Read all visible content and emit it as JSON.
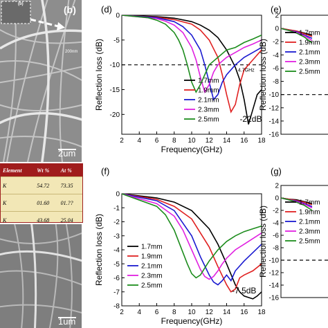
{
  "sem": {
    "panel_letter": "(b)",
    "inset_letter": "(b)",
    "inset_scale": "200nm",
    "top_scale": "2um",
    "bottom_scale": "1um"
  },
  "eds_table": {
    "headers": [
      "Element",
      "Wt %",
      "At %"
    ],
    "rows": [
      [
        "K",
        "54.72",
        "73.35"
      ],
      [
        "K",
        "01.60",
        "01.??"
      ],
      [
        "K",
        "43.68",
        "25.04"
      ]
    ]
  },
  "colors": {
    "1.7mm": "#000000",
    "1.9mm": "#e02020",
    "2.1mm": "#1a1ad0",
    "2.3mm": "#e020e0",
    "2.5mm": "#1c8c1c"
  },
  "chart_data": [
    {
      "panel": "(d)",
      "type": "line",
      "xlabel": "Frequency(GHz)",
      "ylabel": "Reflection loss (dB)",
      "xlim": [
        2,
        18
      ],
      "ylim": [
        -24,
        0
      ],
      "xticks": [
        2,
        4,
        6,
        8,
        10,
        12,
        14,
        16,
        18
      ],
      "yticks": [
        0,
        -5,
        -10,
        -15,
        -20
      ],
      "reference_line": -10,
      "annotations": [
        {
          "text": "-22dB",
          "x": 15.5,
          "y": -21.5
        },
        {
          "text": "4.7GHz",
          "x": 15.3,
          "y": -11.4
        }
      ],
      "legend_position": "bottom-right",
      "series": [
        {
          "name": "1.7mm",
          "color": "#000000",
          "x": [
            2,
            6,
            8,
            10,
            11,
            12,
            13,
            14,
            15,
            15.5,
            16,
            16.5,
            17,
            17.5,
            18
          ],
          "y": [
            0,
            -0.3,
            -0.6,
            -1.3,
            -2,
            -3,
            -4.5,
            -7,
            -10.5,
            -13,
            -17,
            -22,
            -19,
            -16,
            -15
          ]
        },
        {
          "name": "1.9mm",
          "color": "#e02020",
          "x": [
            2,
            6,
            8,
            10,
            11,
            12,
            13,
            13.5,
            14,
            14.5,
            15,
            15.5,
            16,
            17,
            18
          ],
          "y": [
            0,
            -0.4,
            -0.9,
            -1.8,
            -3,
            -5,
            -8.5,
            -12,
            -16,
            -19.5,
            -18,
            -14,
            -11,
            -9,
            -7
          ]
        },
        {
          "name": "2.1mm",
          "color": "#1a1ad0",
          "x": [
            2,
            6,
            8,
            9,
            10,
            11,
            11.5,
            12,
            12.5,
            13,
            13.5,
            14,
            15,
            16,
            17,
            18
          ],
          "y": [
            0,
            -0.5,
            -1.3,
            -2.3,
            -4,
            -7,
            -10,
            -13.5,
            -17,
            -16,
            -13.5,
            -12,
            -10,
            -8.5,
            -7.5,
            -6.5
          ]
        },
        {
          "name": "2.3mm",
          "color": "#e020e0",
          "x": [
            2,
            6,
            7,
            8,
            9,
            10,
            10.5,
            11,
            11.5,
            12,
            12.5,
            13,
            14,
            15,
            16,
            17,
            18
          ],
          "y": [
            0,
            -0.7,
            -1.2,
            -2,
            -3.5,
            -6.5,
            -9,
            -12.5,
            -15.5,
            -14,
            -11.5,
            -10,
            -8.5,
            -7.5,
            -6.5,
            -5.8,
            -5
          ]
        },
        {
          "name": "2.5mm",
          "color": "#1c8c1c",
          "x": [
            2,
            5,
            6,
            7,
            8,
            8.5,
            9,
            9.5,
            10,
            10.5,
            11,
            11.5,
            12,
            13,
            14,
            15,
            16,
            17,
            18
          ],
          "y": [
            0,
            -0.5,
            -1,
            -1.8,
            -3.5,
            -5,
            -7,
            -10,
            -13.5,
            -15.5,
            -14,
            -12,
            -10,
            -8.5,
            -7,
            -6.5,
            -5.5,
            -4.8,
            -4
          ]
        }
      ]
    },
    {
      "panel": "(e)",
      "type": "line",
      "xlabel": "",
      "ylabel": "Reflection loss (dB)",
      "xlim": [
        2,
        18
      ],
      "ylim": [
        -16,
        2
      ],
      "yticks": [
        2,
        0,
        -2,
        -4,
        -6,
        -8,
        -10,
        -12,
        -14,
        -16
      ],
      "reference_line": -10,
      "legend_position": "left",
      "series": [
        {
          "name": "1.7mm",
          "color": "#000000",
          "x": [
            2,
            4,
            6,
            8,
            10
          ],
          "y": [
            0,
            -0.2,
            -0.4,
            -0.7,
            -1
          ]
        },
        {
          "name": "1.9mm",
          "color": "#e02020",
          "x": [
            2,
            4,
            6,
            8,
            10
          ],
          "y": [
            0,
            -0.2,
            -0.4,
            -0.8,
            -1.2
          ]
        },
        {
          "name": "2.1mm",
          "color": "#1a1ad0",
          "x": [
            2,
            4,
            6,
            8,
            10
          ],
          "y": [
            0,
            -0.3,
            -0.5,
            -1,
            -1.5
          ]
        },
        {
          "name": "2.3mm",
          "color": "#e020e0",
          "x": [
            2,
            4,
            6,
            8,
            10
          ],
          "y": [
            0,
            -0.3,
            -0.6,
            -1.1,
            -1.8
          ]
        },
        {
          "name": "2.5mm",
          "color": "#1c8c1c",
          "x": [
            2,
            4,
            6,
            8,
            10
          ],
          "y": [
            0,
            -0.3,
            -0.7,
            -1.3,
            -2.2
          ]
        }
      ]
    },
    {
      "panel": "(f)",
      "type": "line",
      "xlabel": "Frequency(GHz)",
      "ylabel": "Reflection loss (dB)",
      "xlim": [
        2,
        18
      ],
      "ylim": [
        -8,
        0
      ],
      "xticks": [
        2,
        4,
        6,
        8,
        10,
        12,
        14,
        16,
        18
      ],
      "yticks": [
        0,
        -1,
        -2,
        -3,
        -4,
        -5,
        -6,
        -7,
        -8
      ],
      "annotations": [
        {
          "text": "-7.5dB",
          "x": 14.6,
          "y": -7.1
        }
      ],
      "legend_position": "bottom-left",
      "series": [
        {
          "name": "1.7mm",
          "color": "#000000",
          "x": [
            2,
            6,
            8,
            10,
            12,
            13,
            14,
            15,
            15.5,
            16,
            16.5,
            17,
            17.5,
            18
          ],
          "y": [
            0,
            -0.3,
            -0.6,
            -1.2,
            -2.5,
            -3.6,
            -5,
            -6.5,
            -7,
            -7.3,
            -7.4,
            -7.5,
            -7.3,
            -7
          ]
        },
        {
          "name": "1.9mm",
          "color": "#e02020",
          "x": [
            2,
            6,
            8,
            10,
            12,
            13,
            14,
            14.5,
            15,
            15.5,
            16,
            17,
            18
          ],
          "y": [
            0,
            -0.4,
            -0.9,
            -1.8,
            -3.8,
            -5.2,
            -6.5,
            -7,
            -6.8,
            -6,
            -5.8,
            -5.5,
            -5
          ]
        },
        {
          "name": "2.1mm",
          "color": "#1a1ad0",
          "x": [
            2,
            6,
            8,
            10,
            11,
            12,
            12.5,
            13,
            13.5,
            14,
            14.5,
            15,
            16,
            17,
            18
          ],
          "y": [
            0,
            -0.5,
            -1.2,
            -3,
            -4.5,
            -5.8,
            -6.3,
            -6.5,
            -6.2,
            -5.8,
            -6.2,
            -5.5,
            -4.8,
            -4.2,
            -3.6
          ]
        },
        {
          "name": "2.3mm",
          "color": "#e020e0",
          "x": [
            2,
            6,
            8,
            9,
            10,
            11,
            11.5,
            12,
            12.5,
            13,
            13.5,
            14,
            15,
            16,
            17,
            18
          ],
          "y": [
            0,
            -0.7,
            -1.6,
            -2.6,
            -4,
            -5.4,
            -5.9,
            -6.1,
            -5.9,
            -5.5,
            -5,
            -4.6,
            -4,
            -3.6,
            -3.2,
            -2.8
          ]
        },
        {
          "name": "2.5mm",
          "color": "#1c8c1c",
          "x": [
            2,
            6,
            7,
            8,
            9,
            9.5,
            10,
            10.5,
            11,
            11.5,
            12,
            13,
            14,
            15,
            16,
            17,
            18
          ],
          "y": [
            0,
            -0.9,
            -1.5,
            -2.6,
            -4.2,
            -5,
            -5.7,
            -6,
            -5.8,
            -5.3,
            -4.8,
            -4,
            -3.4,
            -3,
            -2.7,
            -2.5,
            -2.3
          ]
        }
      ]
    },
    {
      "panel": "(g)",
      "type": "line",
      "xlabel": "",
      "ylabel": "Reflection loss (dB)",
      "xlim": [
        2,
        18
      ],
      "ylim": [
        -16,
        2
      ],
      "yticks": [
        2,
        0,
        -2,
        -4,
        -6,
        -8,
        -10,
        -12,
        -14,
        -16
      ],
      "reference_line": -10,
      "legend_position": "left",
      "series": [
        {
          "name": "1.7mm",
          "color": "#000000",
          "x": [
            2,
            4,
            6,
            8,
            10
          ],
          "y": [
            0,
            -0.2,
            -0.3,
            -0.6,
            -0.9
          ]
        },
        {
          "name": "1.9mm",
          "color": "#e02020",
          "x": [
            2,
            4,
            6,
            8,
            10
          ],
          "y": [
            0,
            -0.2,
            -0.4,
            -0.7,
            -1.1
          ]
        },
        {
          "name": "2.1mm",
          "color": "#1a1ad0",
          "x": [
            2,
            4,
            6,
            8,
            10
          ],
          "y": [
            0,
            -0.3,
            -0.5,
            -0.9,
            -1.4
          ]
        },
        {
          "name": "2.3mm",
          "color": "#e020e0",
          "x": [
            2,
            4,
            6,
            8,
            10
          ],
          "y": [
            0,
            -0.3,
            -0.6,
            -1,
            -1.6
          ]
        },
        {
          "name": "2.5mm",
          "color": "#1c8c1c",
          "x": [
            2,
            4,
            6,
            8,
            10
          ],
          "y": [
            0,
            -0.3,
            -0.7,
            -1.2,
            -2
          ]
        }
      ]
    }
  ]
}
